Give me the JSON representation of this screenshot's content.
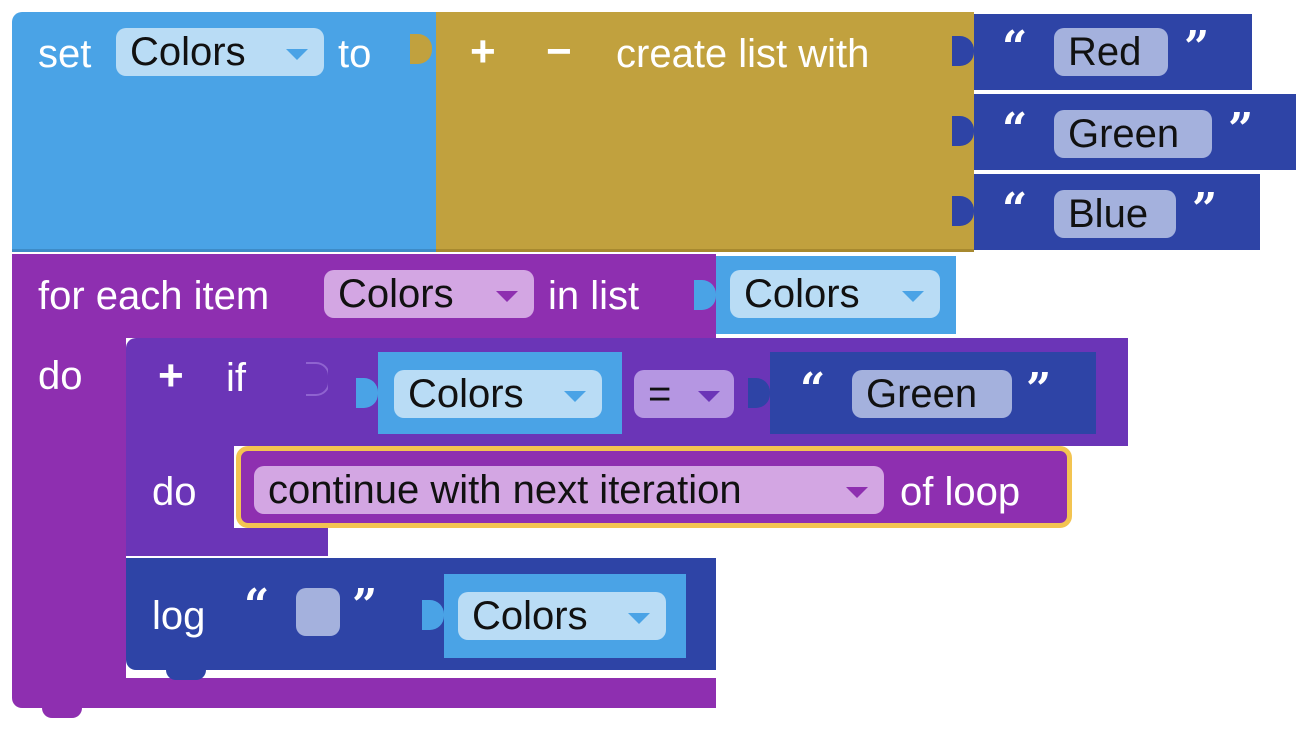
{
  "set_block": {
    "label_set": "set",
    "variable": "Colors",
    "label_to": "to"
  },
  "list_block": {
    "plus": "+",
    "minus": "−",
    "label": "create list with",
    "items": [
      "Red",
      "Green",
      "Blue"
    ]
  },
  "foreach_block": {
    "label_for_each": "for each item",
    "variable": "Colors",
    "label_in_list": "in list",
    "list_variable": "Colors",
    "label_do": "do"
  },
  "if_block": {
    "plus": "+",
    "label_if": "if",
    "compare_variable": "Colors",
    "operator": "=",
    "compare_string": "Green",
    "label_do": "do"
  },
  "continue_block": {
    "mode": "continue with next iteration",
    "label_of_loop": "of loop"
  },
  "log_block": {
    "label": "log",
    "string_value": "",
    "variable": "Colors"
  },
  "quote_open": "“",
  "quote_close": "”",
  "colors": {
    "variables": "#4aa3e6",
    "lists": "#c1a13e",
    "loops": "#8e2fb0",
    "logic": "#6b35b7",
    "text": "#2e44a6",
    "selection": "#f3c451"
  }
}
